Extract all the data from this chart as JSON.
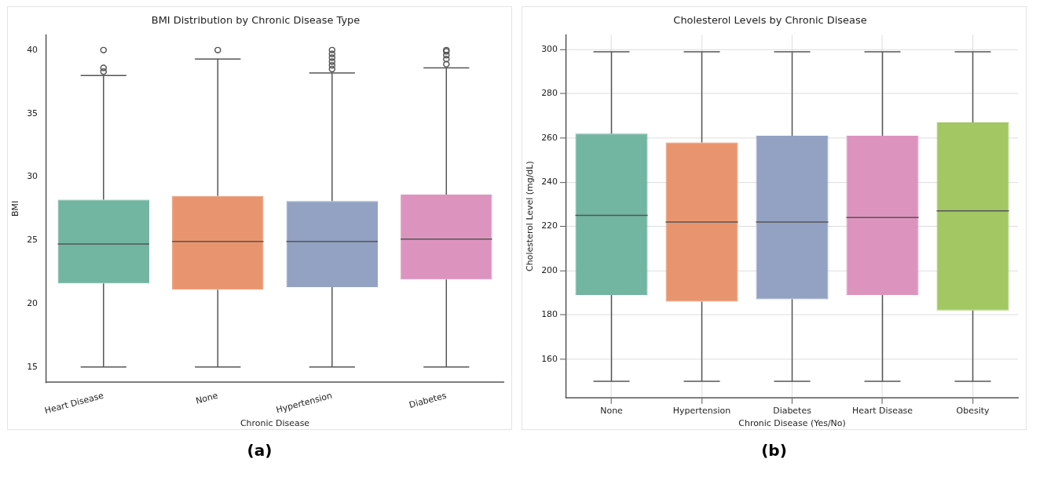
{
  "chart_data": [
    {
      "type": "box",
      "title": "BMI Distribution by Chronic Disease Type",
      "xlabel": "Chronic Disease",
      "ylabel": "BMI",
      "categories": [
        "Heart Disease",
        "None",
        "Hypertension",
        "Diabetes"
      ],
      "colors": [
        "#72b5a0",
        "#e8956f",
        "#93a2c3",
        "#dc94bf"
      ],
      "ylim": [
        13.8,
        41.2
      ],
      "yticks": [
        15,
        20,
        25,
        30,
        35,
        40
      ],
      "grid": false,
      "boxes": [
        {
          "low": 15,
          "q1": 21.6,
          "median": 24.7,
          "q3": 28.2,
          "high": 38,
          "outliers": [
            38.3,
            38.6,
            40
          ]
        },
        {
          "low": 15,
          "q1": 21.1,
          "median": 24.9,
          "q3": 28.5,
          "high": 39.3,
          "outliers": [
            40
          ]
        },
        {
          "low": 15,
          "q1": 21.3,
          "median": 24.9,
          "q3": 28.1,
          "high": 38.2,
          "outliers": [
            38.5,
            38.8,
            39.1,
            39.4,
            39.7,
            40
          ]
        },
        {
          "low": 15,
          "q1": 21.9,
          "median": 25.1,
          "q3": 28.6,
          "high": 38.6,
          "outliers": [
            38.9,
            39.3,
            39.6,
            39.9,
            40
          ]
        }
      ],
      "annotations": [
        "(a)"
      ]
    },
    {
      "type": "box",
      "title": "Cholesterol Levels by Chronic Disease",
      "xlabel": "Chronic Disease (Yes/No)",
      "ylabel": "Cholesterol Level (mg/dL)",
      "categories": [
        "None",
        "Hypertension",
        "Diabetes",
        "Heart Disease",
        "Obesity"
      ],
      "colors": [
        "#72b5a0",
        "#e8956f",
        "#93a2c3",
        "#dc94bf",
        "#a2c763"
      ],
      "ylim": [
        142.6,
        306.6
      ],
      "yticks": [
        160,
        180,
        200,
        220,
        240,
        260,
        280,
        300
      ],
      "grid": true,
      "boxes": [
        {
          "low": 150,
          "q1": 189,
          "median": 225,
          "q3": 262,
          "high": 299
        },
        {
          "low": 150,
          "q1": 186,
          "median": 222,
          "q3": 258,
          "high": 299
        },
        {
          "low": 150,
          "q1": 187,
          "median": 222,
          "q3": 261,
          "high": 299
        },
        {
          "low": 150,
          "q1": 189,
          "median": 224,
          "q3": 261,
          "high": 299
        },
        {
          "low": 150,
          "q1": 182,
          "median": 227,
          "q3": 267,
          "high": 299
        }
      ],
      "annotations": [
        "(b)"
      ]
    }
  ]
}
